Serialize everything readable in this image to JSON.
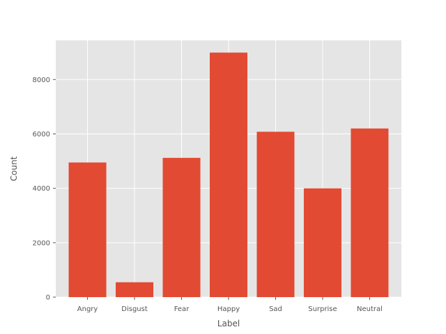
{
  "chart_data": {
    "type": "bar",
    "categories": [
      "Angry",
      "Disgust",
      "Fear",
      "Happy",
      "Sad",
      "Surprise",
      "Neutral"
    ],
    "values": [
      4950,
      547,
      5120,
      8990,
      6080,
      4000,
      6200
    ],
    "xlabel": "Label",
    "ylabel": "Count",
    "ylim": [
      0,
      9440
    ],
    "yticks": [
      0,
      2000,
      4000,
      6000,
      8000
    ],
    "grid": true,
    "colors": {
      "bar": "#E24A33",
      "plot_background": "#E5E5E5",
      "grid": "#FFFFFF",
      "text": "#555555"
    }
  }
}
